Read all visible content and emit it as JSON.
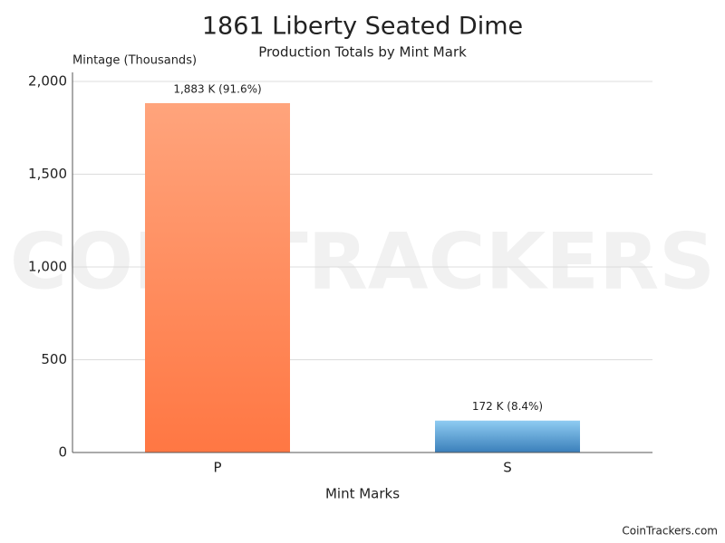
{
  "chart_data": {
    "type": "bar",
    "title": "1861 Liberty Seated Dime",
    "subtitle": "Production Totals by Mint Mark",
    "y_label": "Mintage (Thousands)",
    "x_label": "Mint Marks",
    "watermark": "COIN TRACKERS",
    "credit": "CoinTrackers.com",
    "categories": [
      "P",
      "S"
    ],
    "values": [
      1883,
      172
    ],
    "value_labels": [
      "1,883 K (91.6%)",
      "172 K (8.4%)"
    ],
    "colors": [
      [
        "#ffa47c",
        "#ff7743"
      ],
      [
        "#8fccf2",
        "#3a7fba"
      ]
    ],
    "ylim": [
      0,
      2000
    ],
    "yticks": [
      0,
      500,
      {
        "value": 1000,
        "label": "1,000"
      },
      {
        "value": 1500,
        "label": "1,500"
      },
      {
        "value": 2000,
        "label": "2,000"
      }
    ],
    "grid": true
  }
}
